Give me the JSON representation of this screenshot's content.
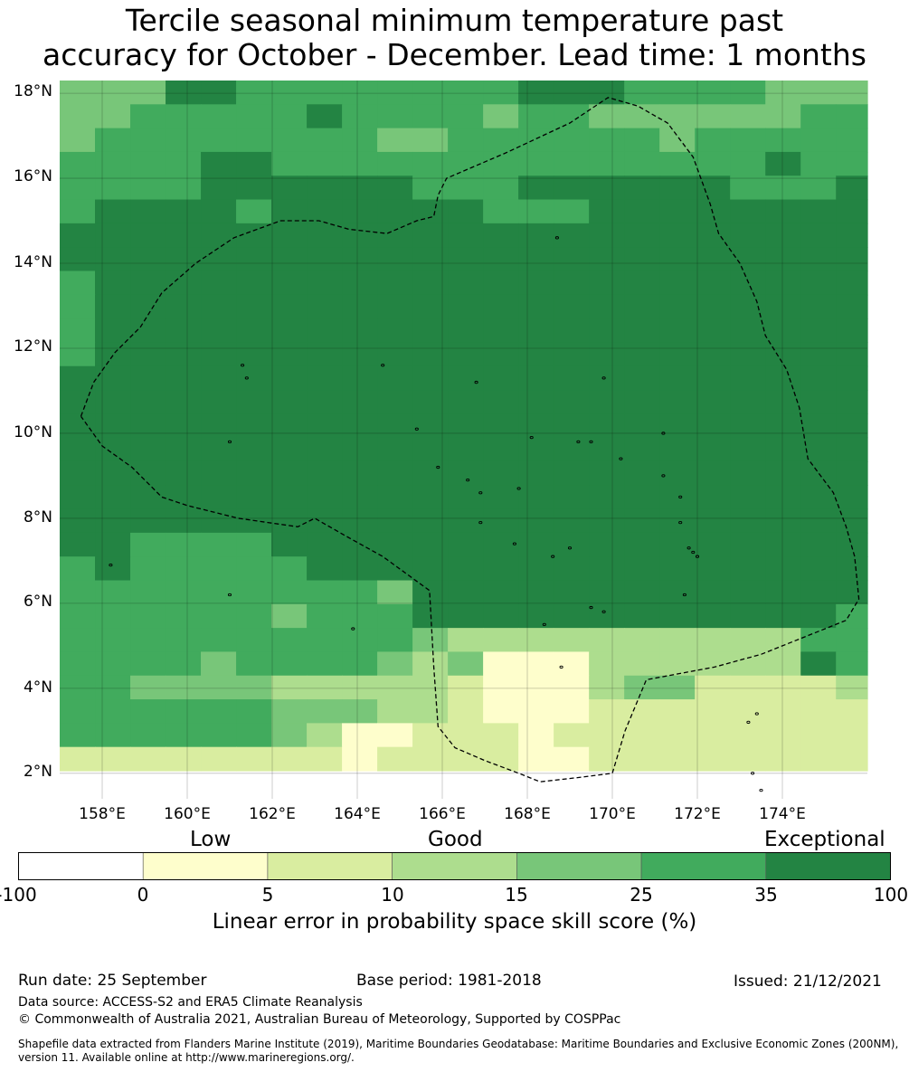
{
  "title": {
    "line1": "Tercile seasonal minimum temperature past",
    "line2": "accuracy for October - December. Lead time: 1 months"
  },
  "map": {
    "lat_labels": [
      "18°N",
      "16°N",
      "14°N",
      "12°N",
      "10°N",
      "8°N",
      "6°N",
      "4°N",
      "2°N"
    ],
    "lon_labels": [
      "158°E",
      "160°E",
      "162°E",
      "164°E",
      "166°E",
      "168°E",
      "170°E",
      "172°E",
      "174°E"
    ],
    "lon_range": [
      157.0,
      176.0
    ],
    "lat_range": [
      1.4,
      18.3
    ],
    "category_colors": [
      "#ffffff",
      "#fefecc",
      "#d9eda0",
      "#addd8e",
      "#78c679",
      "#41ab5d",
      "#238443"
    ],
    "grid": {
      "origin_lon": 157.0,
      "origin_lat": 18.3,
      "cell_deg_lon": 0.83,
      "cell_deg_lat": 0.56,
      "rows": [
        "444665555555566655554444",
        "445555565555455444444555",
        "455555555445555554555555",
        "555566555555555555556555",
        "555566666655566666655566",
        "566665666666555666666666",
        "666666666666666666666666",
        "666666666666666666666666",
        "566666666666666666666666",
        "566666666666666666666666",
        "566666666666666666666666",
        "566666666666666666666666",
        "666666666666666666666666",
        "666666666666666666666666",
        "666666666666666666666666",
        "666666666666666666666666",
        "666666666666666666666666",
        "666666666666666666666666",
        "666666666666666666666666",
        "665555666666666666666666",
        "565555566666666666666666",
        "555555555466666666666665",
        "555555455566666666666655",
        "555555555543333333333555",
        "555545555434333333333655",
        "554444333332222344222232",
        "555555444332222222222222",
        "555555432222222222222222",
        "222222222222222222222222"
      ],
      "low_cells": [
        [
          27,
          8
        ],
        [
          27,
          9
        ],
        [
          27,
          13
        ],
        [
          28,
          13
        ],
        [
          28,
          14
        ],
        [
          26,
          13
        ],
        [
          26,
          14
        ],
        [
          25,
          12
        ],
        [
          25,
          13
        ],
        [
          25,
          14
        ],
        [
          26,
          12
        ],
        [
          24,
          12
        ],
        [
          24,
          13
        ],
        [
          24,
          14
        ]
      ]
    },
    "eez_boundary_lonlat": [
      [
        157.5,
        10.4
      ],
      [
        157.8,
        11.2
      ],
      [
        158.3,
        11.9
      ],
      [
        158.9,
        12.5
      ],
      [
        159.4,
        13.3
      ],
      [
        160.2,
        14.0
      ],
      [
        161.1,
        14.6
      ],
      [
        162.2,
        15.0
      ],
      [
        163.1,
        15.0
      ],
      [
        163.8,
        14.8
      ],
      [
        164.7,
        14.7
      ],
      [
        165.4,
        15.0
      ],
      [
        165.8,
        15.1
      ],
      [
        165.9,
        15.6
      ],
      [
        166.1,
        16.0
      ],
      [
        167.5,
        16.6
      ],
      [
        169.0,
        17.3
      ],
      [
        169.9,
        17.9
      ],
      [
        170.6,
        17.7
      ],
      [
        171.3,
        17.3
      ],
      [
        171.9,
        16.5
      ],
      [
        172.3,
        15.4
      ],
      [
        172.5,
        14.7
      ],
      [
        173.0,
        14.0
      ],
      [
        173.4,
        13.1
      ],
      [
        173.6,
        12.3
      ],
      [
        174.1,
        11.5
      ],
      [
        174.4,
        10.6
      ],
      [
        174.6,
        9.4
      ],
      [
        175.2,
        8.6
      ],
      [
        175.5,
        7.8
      ],
      [
        175.7,
        7.1
      ],
      [
        175.8,
        6.1
      ],
      [
        175.5,
        5.6
      ],
      [
        174.5,
        5.2
      ],
      [
        173.5,
        4.8
      ],
      [
        172.4,
        4.5
      ],
      [
        170.8,
        4.2
      ],
      [
        170.3,
        3.0
      ],
      [
        170.0,
        2.0
      ],
      [
        169.2,
        1.9
      ],
      [
        168.3,
        1.8
      ],
      [
        167.8,
        2.0
      ],
      [
        167.0,
        2.3
      ],
      [
        166.3,
        2.6
      ],
      [
        165.9,
        3.1
      ],
      [
        165.8,
        4.5
      ],
      [
        165.7,
        6.3
      ],
      [
        164.6,
        7.1
      ],
      [
        163.7,
        7.6
      ],
      [
        163.0,
        8.0
      ],
      [
        162.6,
        7.8
      ],
      [
        161.2,
        8.0
      ],
      [
        160.0,
        8.3
      ],
      [
        159.4,
        8.5
      ],
      [
        158.7,
        9.2
      ],
      [
        158.0,
        9.7
      ],
      [
        157.5,
        10.4
      ]
    ],
    "islands_lonlat": [
      [
        158.2,
        6.9
      ],
      [
        161.3,
        11.6
      ],
      [
        161.4,
        11.3
      ],
      [
        164.6,
        11.6
      ],
      [
        166.8,
        11.2
      ],
      [
        169.8,
        11.3
      ],
      [
        165.4,
        10.1
      ],
      [
        168.1,
        9.9
      ],
      [
        169.2,
        9.8
      ],
      [
        169.5,
        9.8
      ],
      [
        170.2,
        9.4
      ],
      [
        171.2,
        10.0
      ],
      [
        165.9,
        9.2
      ],
      [
        166.6,
        8.9
      ],
      [
        166.9,
        8.6
      ],
      [
        167.8,
        8.7
      ],
      [
        166.9,
        7.9
      ],
      [
        167.7,
        7.4
      ],
      [
        168.6,
        7.1
      ],
      [
        169.0,
        7.3
      ],
      [
        171.2,
        9.0
      ],
      [
        171.6,
        8.5
      ],
      [
        171.6,
        7.9
      ],
      [
        171.8,
        7.3
      ],
      [
        171.9,
        7.2
      ],
      [
        172.0,
        7.1
      ],
      [
        171.7,
        6.2
      ],
      [
        169.5,
        5.9
      ],
      [
        169.8,
        5.8
      ],
      [
        168.4,
        5.5
      ],
      [
        168.8,
        4.5
      ],
      [
        163.9,
        5.4
      ],
      [
        161.0,
        6.2
      ],
      [
        161.0,
        9.8
      ],
      [
        168.7,
        14.6
      ],
      [
        173.4,
        3.4
      ],
      [
        173.2,
        3.2
      ],
      [
        173.3,
        2.0
      ],
      [
        173.5,
        1.6
      ]
    ]
  },
  "colorbar": {
    "category_labels": [
      "Low",
      "Good",
      "Exceptional"
    ],
    "ticks": [
      "-100",
      "0",
      "5",
      "10",
      "15",
      "25",
      "35",
      "100"
    ],
    "colors": [
      "#ffffff",
      "#fefecc",
      "#d9eda0",
      "#addd8e",
      "#78c679",
      "#41ab5d",
      "#238443"
    ],
    "label": "Linear error in probability space skill score (%)"
  },
  "footer": {
    "run_date": "Run date: 25 September",
    "base_period": "Base period: 1981-2018",
    "issued": "Issued: 21/12/2021",
    "data_source": "Data source: ACCESS-S2 and ERA5 Climate Reanalysis",
    "copyright": "© Commonwealth of Australia 2021, Australian Bureau of Meteorology, Supported by COSPPac",
    "shapefile_credit": "Shapefile data extracted from Flanders Marine Institute (2019), Maritime Boundaries Geodatabase: Maritime Boundaries and Exclusive Economic Zones (200NM), version 11. Available online at http://www.marineregions.org/."
  }
}
